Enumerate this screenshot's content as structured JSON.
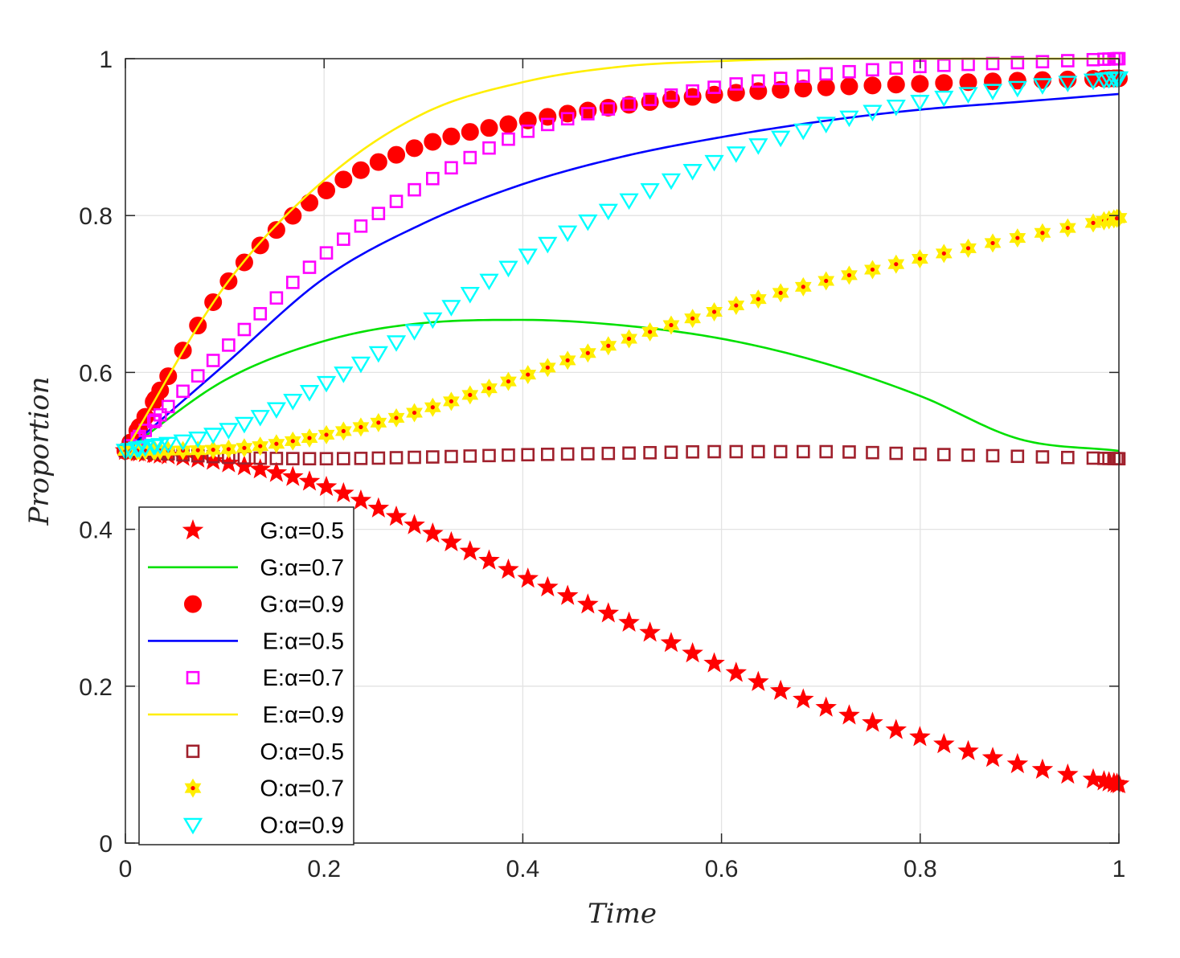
{
  "chart_data": {
    "type": "line",
    "title": "",
    "xlabel": "Time",
    "ylabel": "Proportion",
    "xlim": [
      0,
      1
    ],
    "ylim": [
      0,
      1
    ],
    "grid": true,
    "legend_position": "bottom-left",
    "x_ticks": [
      "0",
      "0.2",
      "0.4",
      "0.6",
      "0.8",
      "1"
    ],
    "y_ticks": [
      "0",
      "0.2",
      "0.4",
      "0.6",
      "0.8",
      "1"
    ],
    "series": [
      {
        "name": "G:α=0.5",
        "style": "marker",
        "marker": "star",
        "color": "#ff0000",
        "x": [
          0,
          0.1,
          0.2,
          0.3,
          0.4,
          0.5,
          0.6,
          0.7,
          0.8,
          0.9,
          1.0
        ],
        "y": [
          0.5,
          0.485,
          0.455,
          0.4,
          0.34,
          0.285,
          0.225,
          0.175,
          0.135,
          0.1,
          0.075
        ]
      },
      {
        "name": "G:α=0.7",
        "style": "line",
        "color": "#00e000",
        "x": [
          0,
          0.1,
          0.2,
          0.3,
          0.4,
          0.5,
          0.6,
          0.7,
          0.8,
          0.9,
          1.0
        ],
        "y": [
          0.5,
          0.59,
          0.64,
          0.663,
          0.667,
          0.66,
          0.643,
          0.613,
          0.57,
          0.515,
          0.5
        ]
      },
      {
        "name": "G:α=0.9",
        "style": "marker",
        "marker": "circle",
        "color": "#ff0000",
        "x": [
          0,
          0.1,
          0.2,
          0.3,
          0.4,
          0.5,
          0.6,
          0.7,
          0.8,
          0.9,
          1.0
        ],
        "y": [
          0.5,
          0.71,
          0.83,
          0.89,
          0.92,
          0.94,
          0.955,
          0.963,
          0.968,
          0.972,
          0.975
        ]
      },
      {
        "name": "E:α=0.5",
        "style": "line",
        "color": "#0000ff",
        "x": [
          0,
          0.1,
          0.2,
          0.3,
          0.4,
          0.5,
          0.6,
          0.7,
          0.8,
          0.9,
          1.0
        ],
        "y": [
          0.5,
          0.61,
          0.72,
          0.79,
          0.84,
          0.875,
          0.9,
          0.92,
          0.935,
          0.945,
          0.955
        ]
      },
      {
        "name": "E:α=0.7",
        "style": "marker",
        "marker": "square",
        "color": "#ff00ff",
        "x": [
          0,
          0.1,
          0.2,
          0.3,
          0.4,
          0.5,
          0.6,
          0.7,
          0.8,
          0.9,
          1.0
        ],
        "y": [
          0.5,
          0.63,
          0.75,
          0.84,
          0.905,
          0.94,
          0.965,
          0.98,
          0.99,
          0.995,
          1.0
        ]
      },
      {
        "name": "E:α=0.9",
        "style": "line",
        "color": "#ffee00",
        "x": [
          0,
          0.1,
          0.2,
          0.3,
          0.4,
          0.5,
          0.6,
          0.7,
          0.8,
          0.9,
          1.0
        ],
        "y": [
          0.5,
          0.71,
          0.845,
          0.93,
          0.97,
          0.99,
          0.997,
          1.0,
          1.0,
          1.0,
          1.0
        ]
      },
      {
        "name": "O:α=0.5",
        "style": "marker",
        "marker": "square",
        "color": "#a0202c",
        "x": [
          0,
          0.1,
          0.2,
          0.3,
          0.4,
          0.5,
          0.6,
          0.7,
          0.8,
          0.9,
          1.0
        ],
        "y": [
          0.5,
          0.492,
          0.49,
          0.492,
          0.495,
          0.497,
          0.499,
          0.499,
          0.496,
          0.493,
          0.49
        ]
      },
      {
        "name": "O:α=0.7",
        "style": "marker",
        "marker": "hexagram",
        "color": "#ffee00",
        "x": [
          0,
          0.1,
          0.2,
          0.3,
          0.4,
          0.5,
          0.6,
          0.7,
          0.8,
          0.9,
          1.0
        ],
        "y": [
          0.5,
          0.502,
          0.52,
          0.552,
          0.595,
          0.64,
          0.68,
          0.715,
          0.745,
          0.772,
          0.797
        ]
      },
      {
        "name": "O:α=0.9",
        "style": "marker",
        "marker": "triangle-down",
        "color": "#00ffff",
        "x": [
          0,
          0.1,
          0.2,
          0.3,
          0.4,
          0.5,
          0.6,
          0.7,
          0.8,
          0.9,
          1.0
        ],
        "y": [
          0.5,
          0.525,
          0.585,
          0.66,
          0.745,
          0.815,
          0.872,
          0.915,
          0.945,
          0.963,
          0.975
        ]
      }
    ]
  }
}
